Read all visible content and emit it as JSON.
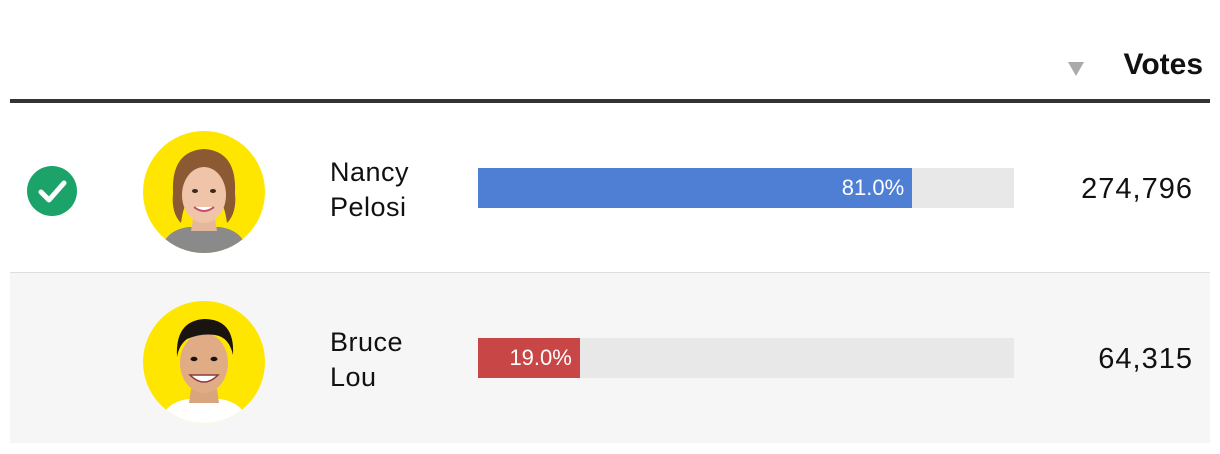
{
  "header": {
    "votes_label": "Votes"
  },
  "candidates": [
    {
      "name_line1": "Nancy",
      "name_line2": "Pelosi",
      "percent": 81.0,
      "percent_label": "81.0%",
      "votes": "274,796",
      "winner": true,
      "bar_color": "#4f7fd4"
    },
    {
      "name_line1": "Bruce",
      "name_line2": "Lou",
      "percent": 19.0,
      "percent_label": "19.0%",
      "votes": "64,315",
      "winner": false,
      "bar_color": "#c94646"
    }
  ],
  "colors": {
    "winner_check": "#1ba36a",
    "avatar_ring": "#ffe600",
    "bar_track": "#e8e8e8"
  }
}
